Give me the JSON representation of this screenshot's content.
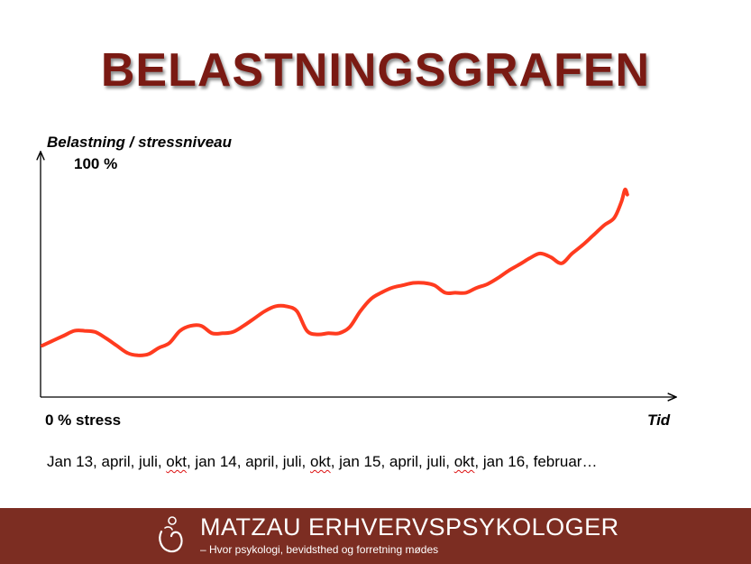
{
  "slide": {
    "title": "BELASTNINGSGRAFEN",
    "timeline_parts": [
      {
        "text": "Jan 13, april, juli, ",
        "flag": false
      },
      {
        "text": "okt",
        "flag": true
      },
      {
        "text": ", jan 14, april, juli, ",
        "flag": false
      },
      {
        "text": "okt",
        "flag": true
      },
      {
        "text": ", jan 15, april, juli, ",
        "flag": false
      },
      {
        "text": "okt",
        "flag": true
      },
      {
        "text": ", jan 16, februar…",
        "flag": false
      }
    ]
  },
  "footer": {
    "brand": "MATZAU ERHVERVSPSYKOLOGER",
    "tagline": "– Hvor psykologi, bevidsthed og forretning mødes",
    "background_color": "#7c2d22"
  },
  "chart_data": {
    "type": "line",
    "ylabel": "Belastning / stressniveau",
    "xlabel": "Tid",
    "y_top_label": "100 %",
    "y_bottom_label": "0 % stress",
    "ylim": [
      0,
      100
    ],
    "xlim": [
      0,
      100
    ],
    "grid": false,
    "line_color": "#ff3b1f",
    "series": [
      {
        "x": [
          0,
          1.8,
          3.6,
          5.4,
          7.1,
          8.9,
          10.7,
          12.5,
          14.3,
          16.1,
          17.9,
          19.6,
          21.4,
          23.2,
          25.0,
          26.8,
          28.6,
          30.4,
          32.1,
          33.9,
          35.7,
          37.5,
          39.3,
          41.1,
          42.9,
          44.6,
          46.4,
          48.2,
          50.0,
          51.8,
          53.6,
          55.4,
          57.1,
          58.9,
          60.7,
          62.5,
          64.3,
          66.1,
          67.9,
          69.6,
          71.4,
          73.2,
          75.0,
          76.8,
          78.6,
          80.4,
          82.1,
          83.9,
          85.7,
          87.5,
          89.3,
          91.1,
          92.9,
          94.7,
          96.4,
          97.6,
          98.2,
          98.6
        ],
        "y": [
          21,
          23,
          25,
          27,
          27,
          26.5,
          24,
          21,
          18,
          17,
          17.5,
          20,
          22,
          27,
          29,
          29,
          26,
          26,
          26.5,
          29,
          32,
          35,
          37,
          37,
          35,
          27,
          25.5,
          26,
          26,
          28.5,
          35,
          40,
          42.5,
          44.5,
          45.5,
          46.5,
          46.5,
          45.5,
          42.5,
          42.5,
          42.5,
          44.5,
          46,
          48.5,
          51.5,
          54,
          56.5,
          58.5,
          57,
          54.5,
          58.5,
          62,
          66,
          70,
          73,
          79.5,
          84.5,
          82.5
        ]
      }
    ]
  }
}
